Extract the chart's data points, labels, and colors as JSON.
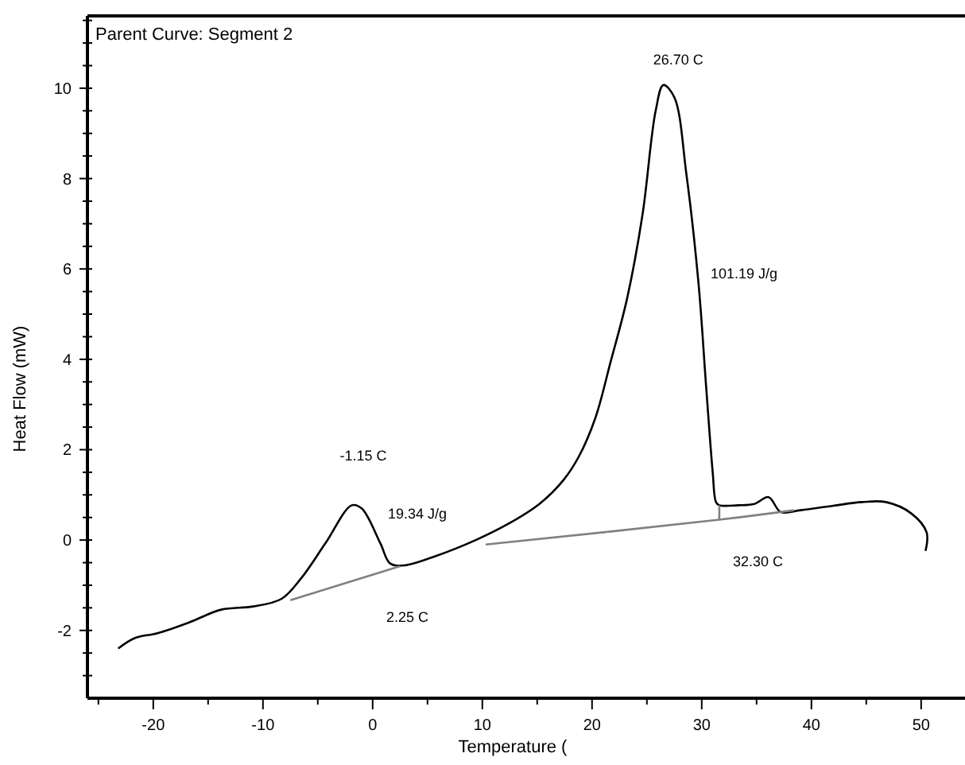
{
  "chart_data": {
    "type": "line",
    "title": "Parent Curve: Segment 2",
    "xlabel": "Temperature (",
    "ylabel": "Heat Flow (mW)",
    "xlim": [
      -26,
      54
    ],
    "ylim": [
      -3.5,
      11.6
    ],
    "xticks": [
      {
        "value": -25,
        "label": null
      },
      -20,
      {
        "value": -15,
        "label": null
      },
      -10,
      {
        "value": -5,
        "label": null
      },
      0,
      {
        "value": 5,
        "label": null
      },
      10,
      {
        "value": 15,
        "label": null
      },
      20,
      {
        "value": 25,
        "label": null
      },
      30,
      {
        "value": 35,
        "label": null
      },
      40,
      {
        "value": 45,
        "label": null
      },
      50
    ],
    "yticks": [
      {
        "value": -3,
        "label": null
      },
      {
        "value": -2.5,
        "label": null
      },
      -2,
      {
        "value": -1.5,
        "label": null
      },
      {
        "value": -1,
        "label": null
      },
      {
        "value": -0.5,
        "label": null
      },
      0,
      {
        "value": 0.5,
        "label": null
      },
      {
        "value": 1,
        "label": null
      },
      {
        "value": 1.5,
        "label": null
      },
      2,
      {
        "value": 2.5,
        "label": null
      },
      {
        "value": 3,
        "label": null
      },
      {
        "value": 3.5,
        "label": null
      },
      4,
      {
        "value": 4.5,
        "label": null
      },
      {
        "value": 5,
        "label": null
      },
      {
        "value": 5.5,
        "label": null
      },
      6,
      {
        "value": 6.5,
        "label": null
      },
      {
        "value": 7,
        "label": null
      },
      {
        "value": 7.5,
        "label": null
      },
      8,
      {
        "value": 8.5,
        "label": null
      },
      {
        "value": 9,
        "label": null
      },
      {
        "value": 9.5,
        "label": null
      },
      10,
      {
        "value": 10.5,
        "label": null
      },
      {
        "value": 11,
        "label": null
      },
      {
        "value": 11.5,
        "label": null
      }
    ],
    "grid": false,
    "marker": "none",
    "line_style": "solid",
    "series": [
      {
        "color": "#000000",
        "x": [
          -23.2,
          -21.7,
          -19.6,
          -16.7,
          -13.8,
          -10.9,
          -8.3,
          -6.5,
          -4.3,
          -1.9,
          -1.0,
          0.7,
          1.6,
          2.9,
          5.8,
          9.4,
          12.3,
          15.2,
          17.4,
          18.8,
          20.3,
          21.7,
          23.2,
          24.6,
          25.8,
          26.5,
          27.5,
          28.6,
          29.7,
          30.4,
          31.0,
          31.3,
          31.6,
          33.3,
          34.8,
          36.1,
          37.2,
          39.0,
          42.0,
          44.6,
          46.8,
          49.1,
          50.5,
          50.4
        ],
        "values": [
          -2.4,
          -2.17,
          -2.06,
          -1.82,
          -1.54,
          -1.47,
          -1.3,
          -0.84,
          -0.07,
          0.77,
          0.7,
          -0.07,
          -0.52,
          -0.56,
          -0.35,
          0,
          0.35,
          0.8,
          1.33,
          1.85,
          2.7,
          3.95,
          5.35,
          7.2,
          9.5,
          10.07,
          9.8,
          8.1,
          5.7,
          3.4,
          1.5,
          0.84,
          0.77,
          0.77,
          0.8,
          0.95,
          0.62,
          0.66,
          0.76,
          0.84,
          0.84,
          0.59,
          0.17,
          -0.24
        ]
      },
      {
        "color": "#808080",
        "x": [
          -7.5,
          2.5
        ],
        "values": [
          -1.33,
          -0.58
        ]
      },
      {
        "color": "#808080",
        "x": [
          10.3,
          31.6,
          38.4
        ],
        "values": [
          -0.1,
          0.45,
          0.66
        ]
      },
      {
        "color": "#808080",
        "x": [
          31.6,
          31.6
        ],
        "values": [
          0.77,
          0.45
        ]
      }
    ],
    "annotations": [
      {
        "text": "-1.15 C",
        "x": -1.15,
        "y": 0.77
      },
      "19.34 J/g",
      "2.25 C",
      {
        "text": "26.70 C",
        "x": 26.7,
        "y": 10.07
      },
      "101.19 J/g",
      "32.30 C"
    ]
  }
}
